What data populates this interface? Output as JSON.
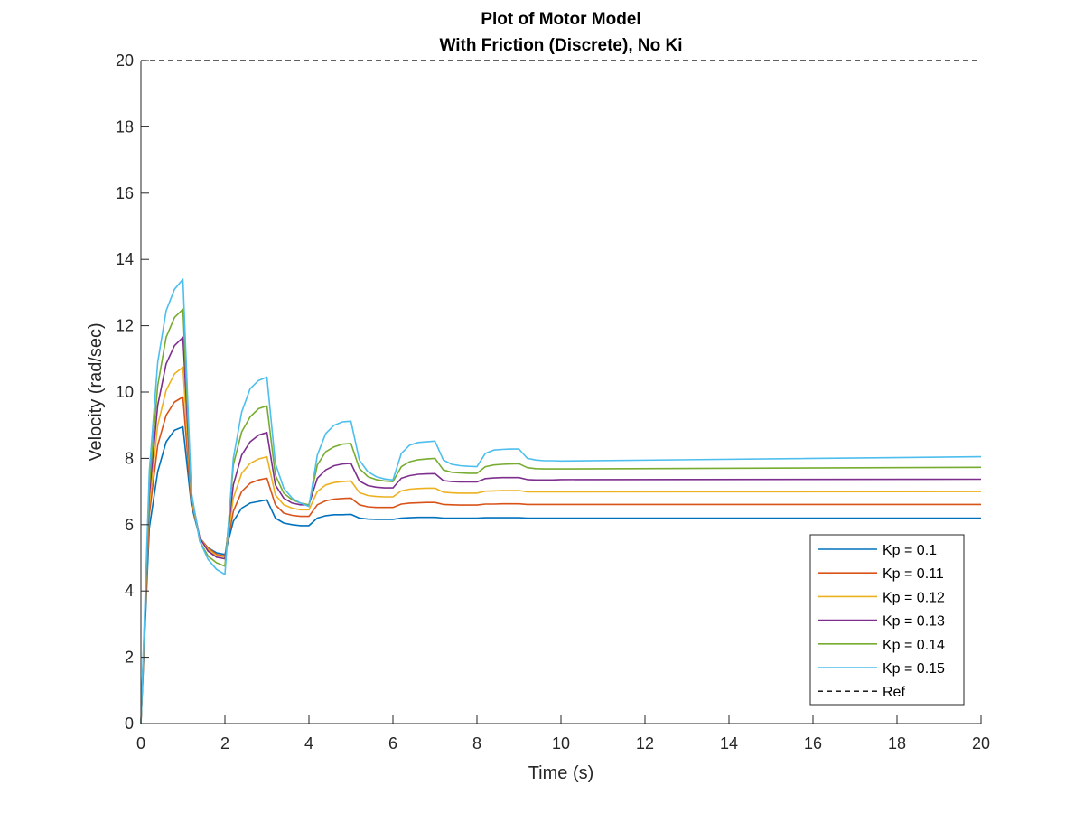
{
  "chart_data": {
    "type": "line",
    "title": [
      "Plot of Motor Model",
      "With Friction (Discrete), No Ki"
    ],
    "xlabel": "Time (s)",
    "ylabel": "Velocity (rad/sec)",
    "xlim": [
      0,
      20
    ],
    "ylim": [
      0,
      20
    ],
    "xticks": [
      0,
      2,
      4,
      6,
      8,
      10,
      12,
      14,
      16,
      18,
      20
    ],
    "yticks": [
      0,
      2,
      4,
      6,
      8,
      10,
      12,
      14,
      16,
      18,
      20
    ],
    "grid": false,
    "legend_position": "lower-right",
    "x": [
      0,
      0.2,
      0.4,
      0.6,
      0.8,
      1.0,
      1.2,
      1.4,
      1.6,
      1.8,
      2.0,
      2.2,
      2.4,
      2.6,
      2.8,
      3.0,
      3.2,
      3.4,
      3.6,
      3.8,
      4.0,
      4.2,
      4.4,
      4.6,
      4.8,
      5.0,
      5.2,
      5.4,
      5.6,
      5.8,
      6.0,
      6.2,
      6.4,
      6.6,
      6.8,
      7.0,
      7.2,
      7.4,
      7.6,
      7.8,
      8.0,
      8.2,
      8.4,
      8.6,
      8.8,
      9.0,
      9.2,
      9.4,
      9.6,
      9.8,
      10.0,
      20.0
    ],
    "series": [
      {
        "name": "Kp = 0.1",
        "color": "#0072BD",
        "values": [
          0,
          5.9,
          7.6,
          8.5,
          8.85,
          8.95,
          6.6,
          5.6,
          5.3,
          5.15,
          5.1,
          6.1,
          6.5,
          6.65,
          6.7,
          6.75,
          6.2,
          6.05,
          6.0,
          5.97,
          5.97,
          6.2,
          6.27,
          6.3,
          6.3,
          6.31,
          6.2,
          6.17,
          6.16,
          6.16,
          6.16,
          6.2,
          6.21,
          6.22,
          6.22,
          6.22,
          6.2,
          6.2,
          6.2,
          6.2,
          6.2,
          6.21,
          6.21,
          6.21,
          6.21,
          6.21,
          6.2,
          6.2,
          6.2,
          6.2,
          6.2,
          6.2
        ]
      },
      {
        "name": "Kp = 0.11",
        "color": "#D95319",
        "values": [
          0,
          6.3,
          8.4,
          9.3,
          9.7,
          9.85,
          6.7,
          5.6,
          5.3,
          5.1,
          5.05,
          6.4,
          7.0,
          7.25,
          7.35,
          7.4,
          6.6,
          6.35,
          6.28,
          6.25,
          6.25,
          6.6,
          6.72,
          6.77,
          6.79,
          6.8,
          6.6,
          6.54,
          6.52,
          6.52,
          6.52,
          6.62,
          6.65,
          6.66,
          6.67,
          6.67,
          6.61,
          6.6,
          6.59,
          6.59,
          6.59,
          6.62,
          6.62,
          6.63,
          6.63,
          6.63,
          6.61,
          6.61,
          6.61,
          6.61,
          6.61,
          6.61
        ]
      },
      {
        "name": "Kp = 0.12",
        "color": "#EDB120",
        "values": [
          0,
          6.6,
          9.0,
          10.05,
          10.55,
          10.75,
          6.8,
          5.6,
          5.25,
          5.07,
          5.02,
          6.8,
          7.55,
          7.85,
          7.98,
          8.05,
          6.9,
          6.6,
          6.5,
          6.45,
          6.45,
          7.0,
          7.2,
          7.27,
          7.3,
          7.32,
          6.97,
          6.88,
          6.85,
          6.84,
          6.84,
          7.02,
          7.07,
          7.09,
          7.1,
          7.1,
          6.98,
          6.96,
          6.95,
          6.95,
          6.95,
          7.01,
          7.02,
          7.03,
          7.03,
          7.03,
          6.99,
          6.99,
          6.99,
          6.99,
          6.99,
          7.0
        ]
      },
      {
        "name": "Kp = 0.13",
        "color": "#7E2F8E",
        "values": [
          0,
          6.9,
          9.6,
          10.85,
          11.4,
          11.65,
          6.9,
          5.6,
          5.2,
          5.02,
          4.97,
          7.2,
          8.1,
          8.5,
          8.7,
          8.78,
          7.2,
          6.8,
          6.65,
          6.6,
          6.6,
          7.4,
          7.65,
          7.78,
          7.83,
          7.85,
          7.32,
          7.18,
          7.13,
          7.11,
          7.11,
          7.4,
          7.48,
          7.52,
          7.53,
          7.54,
          7.33,
          7.3,
          7.29,
          7.29,
          7.29,
          7.39,
          7.41,
          7.42,
          7.42,
          7.42,
          7.36,
          7.35,
          7.35,
          7.35,
          7.36,
          7.37
        ]
      },
      {
        "name": "Kp = 0.14",
        "color": "#77AC30",
        "values": [
          0,
          7.2,
          10.2,
          11.65,
          12.25,
          12.5,
          6.95,
          5.5,
          5.05,
          4.85,
          4.75,
          7.8,
          8.8,
          9.25,
          9.5,
          9.58,
          7.5,
          6.95,
          6.75,
          6.65,
          6.6,
          7.8,
          8.2,
          8.35,
          8.43,
          8.45,
          7.7,
          7.45,
          7.36,
          7.32,
          7.3,
          7.75,
          7.9,
          7.96,
          7.98,
          8.0,
          7.65,
          7.58,
          7.56,
          7.55,
          7.55,
          7.75,
          7.8,
          7.82,
          7.83,
          7.84,
          7.72,
          7.69,
          7.68,
          7.68,
          7.68,
          7.73
        ]
      },
      {
        "name": "Kp = 0.15",
        "color": "#4DBEEE",
        "values": [
          0,
          7.6,
          10.9,
          12.45,
          13.1,
          13.4,
          7.0,
          5.5,
          4.95,
          4.65,
          4.5,
          8.0,
          9.4,
          10.1,
          10.35,
          10.45,
          7.85,
          7.1,
          6.8,
          6.65,
          6.55,
          8.1,
          8.75,
          9.0,
          9.1,
          9.12,
          7.95,
          7.6,
          7.45,
          7.38,
          7.35,
          8.15,
          8.4,
          8.48,
          8.5,
          8.52,
          7.95,
          7.82,
          7.78,
          7.76,
          7.75,
          8.15,
          8.25,
          8.27,
          8.28,
          8.28,
          8.0,
          7.95,
          7.93,
          7.93,
          7.92,
          8.05
        ]
      },
      {
        "name": "Ref",
        "color": "#000000",
        "dashed": true,
        "values": [
          20,
          20,
          20,
          20,
          20,
          20,
          20,
          20,
          20,
          20,
          20,
          20,
          20,
          20,
          20,
          20,
          20,
          20,
          20,
          20,
          20,
          20,
          20,
          20,
          20,
          20,
          20,
          20,
          20,
          20,
          20,
          20,
          20,
          20,
          20,
          20,
          20,
          20,
          20,
          20,
          20,
          20,
          20,
          20,
          20,
          20,
          20,
          20,
          20,
          20,
          20,
          20
        ]
      }
    ]
  }
}
